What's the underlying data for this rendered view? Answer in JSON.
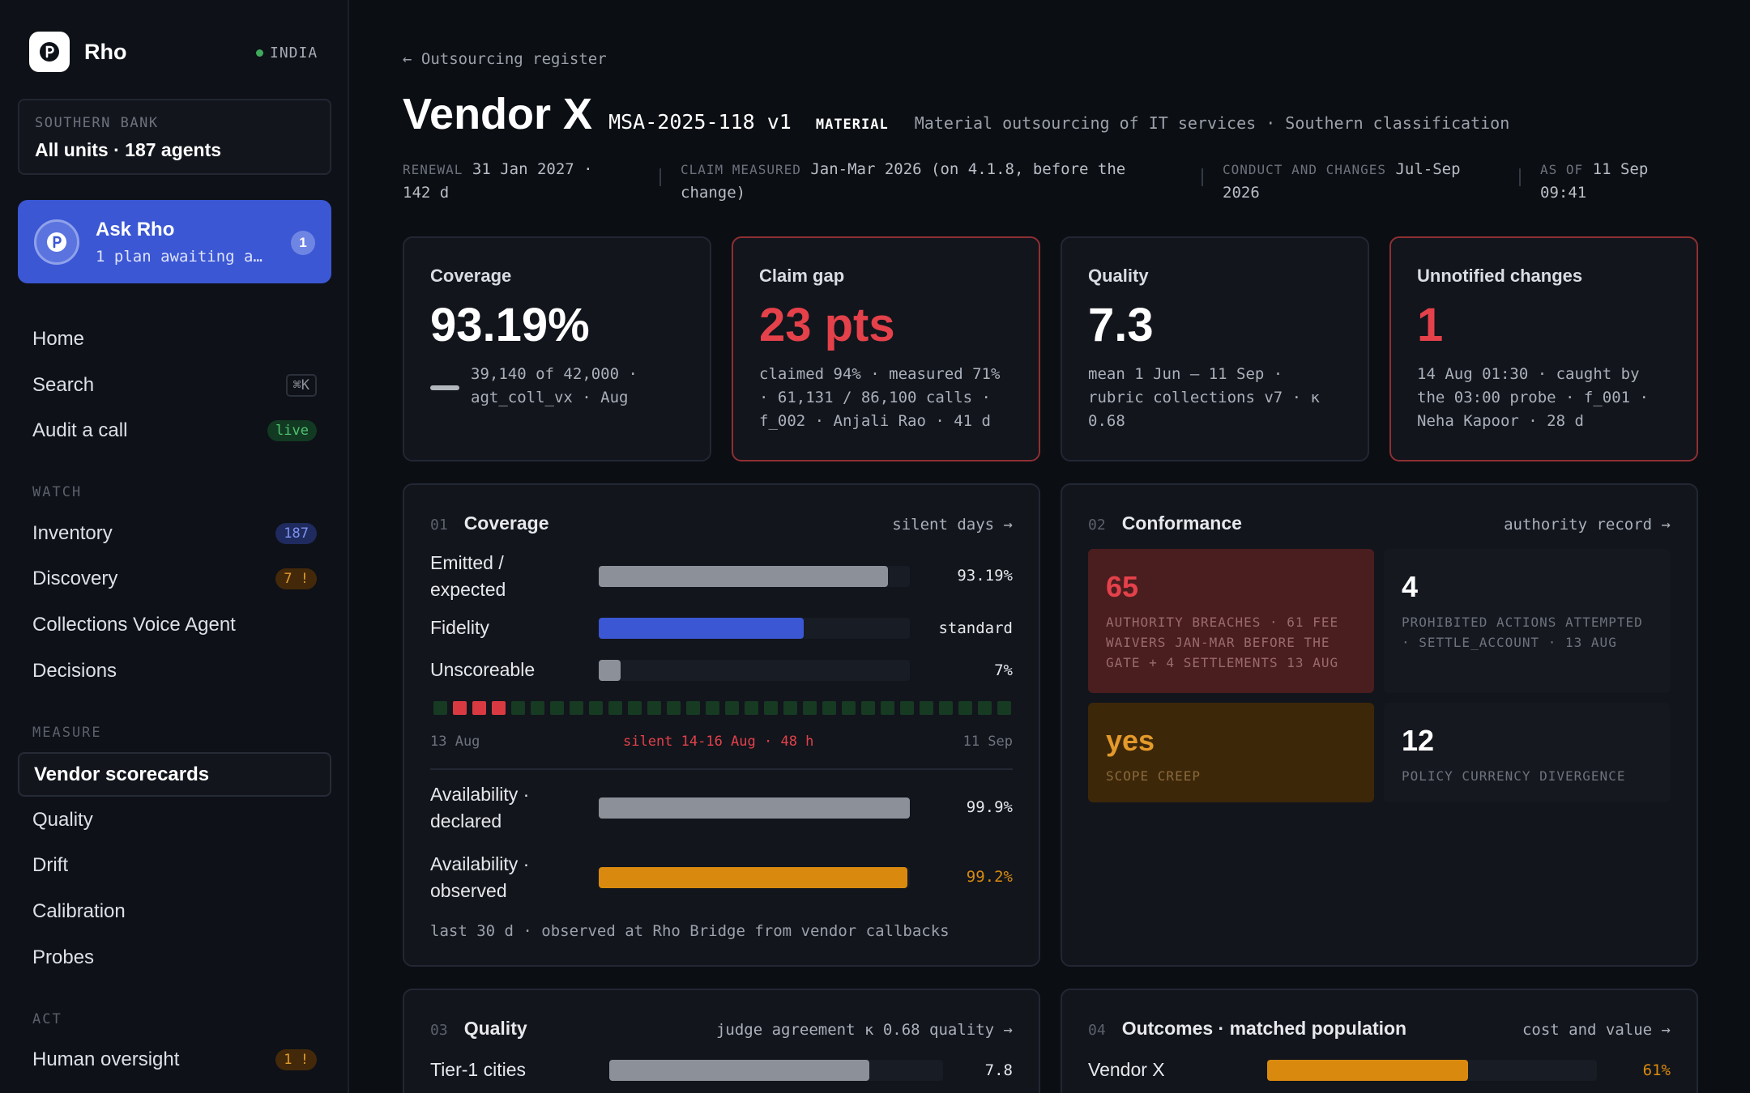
{
  "sidebar": {
    "brand": "Rho",
    "region": "INDIA",
    "org_label": "SOUTHERN BANK",
    "org_value": "All units · 187 agents",
    "ask": {
      "title": "Ask Rho",
      "subtitle": "1 plan awaiting a…",
      "badge": "1"
    },
    "items": [
      {
        "label": "Home"
      },
      {
        "label": "Search",
        "badge": "⌘K"
      },
      {
        "label": "Audit a call",
        "badge": "live"
      },
      {
        "label": "Inventory",
        "badge": "187"
      },
      {
        "label": "Discovery",
        "badge": "7 !"
      },
      {
        "label": "Collections Voice Agent"
      },
      {
        "label": "Decisions"
      },
      {
        "label": "Vendor scorecards"
      },
      {
        "label": "Quality"
      },
      {
        "label": "Drift"
      },
      {
        "label": "Calibration"
      },
      {
        "label": "Probes"
      },
      {
        "label": "Human oversight",
        "badge": "1 !"
      }
    ],
    "sections": {
      "watch": "WATCH",
      "measure": "MEASURE",
      "act": "ACT"
    }
  },
  "header": {
    "breadcrumb": "← Outsourcing register",
    "title": "Vendor X",
    "contract_id": "MSA-2025-118 v1",
    "materiality": "MATERIAL",
    "description": "Material outsourcing of IT services · Southern classification",
    "meta": [
      {
        "key": "RENEWAL",
        "value": "31 Jan 2027 ·",
        "value2": "142 d"
      },
      {
        "key": "CLAIM MEASURED",
        "value": "Jan-Mar 2026 (on 4.1.8, before the",
        "value2": "change)"
      },
      {
        "key": "CONDUCT AND CHANGES",
        "value": "Jul-Sep",
        "value2": "2026"
      },
      {
        "key": "AS OF",
        "value": "11 Sep",
        "value2": "09:41"
      }
    ]
  },
  "kpis": [
    {
      "label": "Coverage",
      "value": "93.19%",
      "line1": "39,140 of 42,000 ·",
      "line2": "agt_coll_vx · Aug",
      "line3": ""
    },
    {
      "label": "Claim gap",
      "value": "23 pts",
      "line1": "claimed 94% · measured 71%",
      "line2": "· 61,131 / 86,100 calls ·",
      "line3": "f_002 · Anjali Rao · 41 d"
    },
    {
      "label": "Quality",
      "value": "7.3",
      "line1": "mean 1 Jun – 11 Sep ·",
      "line2": "rubric collections v7 · κ",
      "line3": "0.68"
    },
    {
      "label": "Unnotified changes",
      "value": "1",
      "line1": "14 Aug 01:30 · caught by",
      "line2": "the 03:00 probe · f_001 ·",
      "line3": "Neha Kapoor · 28 d"
    }
  ],
  "coverage_panel": {
    "num": "01",
    "title": "Coverage",
    "link": "silent days →",
    "rows": [
      {
        "label1": "Emitted /",
        "label2": "expected",
        "value": "93.19%",
        "fill": 0.93
      },
      {
        "label1": "Fidelity",
        "label2": "",
        "value": "standard",
        "fill": 0.66
      },
      {
        "label1": "Unscoreable",
        "label2": "",
        "value": "7%",
        "fill": 0.07
      }
    ],
    "days": [
      "ok",
      "bad",
      "bad",
      "bad",
      "ok",
      "ok",
      "ok",
      "ok",
      "ok",
      "ok",
      "ok",
      "ok",
      "ok",
      "ok",
      "ok",
      "ok",
      "ok",
      "ok",
      "ok",
      "ok",
      "ok",
      "ok",
      "ok",
      "ok",
      "ok",
      "ok",
      "ok",
      "ok",
      "ok",
      "ok"
    ],
    "day_start": "13 Aug",
    "day_silent": "silent 14-16 Aug · 48 h",
    "day_end": "11 Sep",
    "avail": [
      {
        "label1": "Availability ·",
        "label2": "declared",
        "value": "99.9%",
        "fill": 0.999
      },
      {
        "label1": "Availability ·",
        "label2": "observed",
        "value": "99.2%",
        "fill": 0.992
      }
    ],
    "footnote": "last 30 d · observed at Rho Bridge from vendor callbacks"
  },
  "conformance_panel": {
    "num": "02",
    "title": "Conformance",
    "link": "authority record →",
    "cells": [
      {
        "value": "65",
        "caption": "AUTHORITY BREACHES · 61 FEE WAIVERS JAN-MAR BEFORE THE GATE + 4 SETTLEMENTS 13 AUG"
      },
      {
        "value": "4",
        "caption": "PROHIBITED ACTIONS ATTEMPTED · SETTLE_ACCOUNT · 13 AUG"
      },
      {
        "value": "yes",
        "caption": "SCOPE CREEP"
      },
      {
        "value": "12",
        "caption": "POLICY CURRENCY DIVERGENCE"
      }
    ]
  },
  "quality_panel": {
    "num": "03",
    "title": "Quality",
    "link": "judge agreement κ 0.68  quality →",
    "row": {
      "label": "Tier-1 cities",
      "value": "7.8",
      "fill": 0.78
    }
  },
  "outcomes_panel": {
    "num": "04",
    "title": "Outcomes · matched population",
    "link": "cost and value →",
    "row": {
      "label": "Vendor X",
      "value": "61%",
      "fill": 0.61
    }
  },
  "colors": {
    "accent": "#3b57d4",
    "red": "#e4414a",
    "amber": "#d98a0e",
    "green": "#3fa95c"
  }
}
